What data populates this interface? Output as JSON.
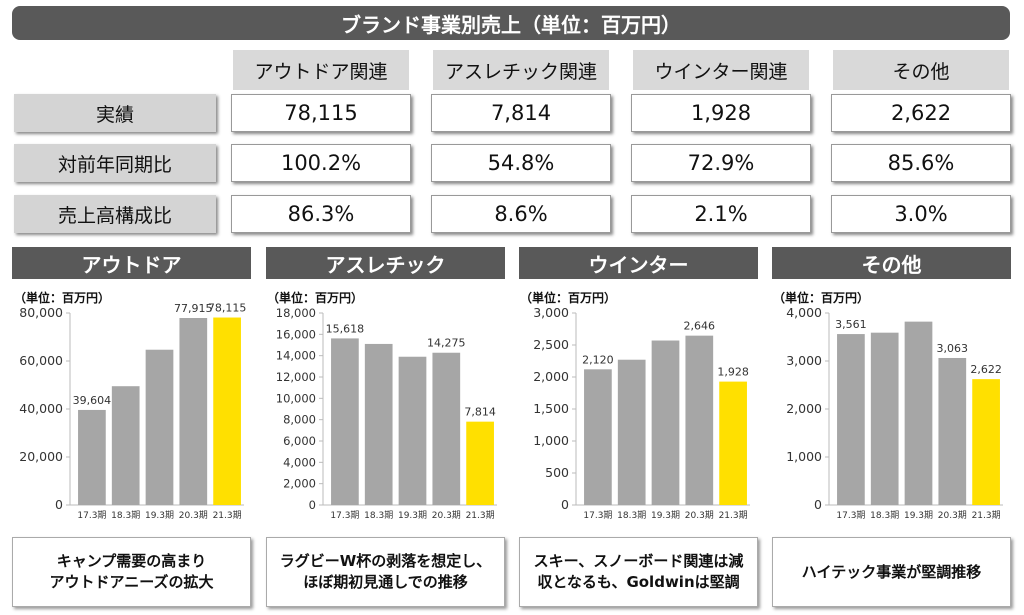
{
  "title": "ブランド事業別売上（単位：百万円）",
  "table": {
    "columns": [
      "アウトドア関連",
      "アスレチック関連",
      "ウインター関連",
      "その他"
    ],
    "rows": [
      {
        "label": "実績",
        "values": [
          "78,115",
          "7,814",
          "1,928",
          "2,622"
        ]
      },
      {
        "label": "対前年同期比",
        "values": [
          "100.2%",
          "54.8%",
          "72.9%",
          "85.6%"
        ]
      },
      {
        "label": "売上高構成比",
        "values": [
          "86.3%",
          "8.6%",
          "2.1%",
          "3.0%"
        ]
      }
    ]
  },
  "colors": {
    "bar": "#a6a6a6",
    "highlight": "#ffe000",
    "header": "#595959"
  },
  "chart_data": [
    {
      "type": "bar",
      "title": "アウトドア",
      "unit": "（単位：百万円）",
      "categories": [
        "17.3期",
        "18.3期",
        "19.3期",
        "20.3期",
        "21.3期"
      ],
      "values": [
        39604,
        49500,
        64700,
        77915,
        78115
      ],
      "labels": [
        "39,604",
        "",
        "",
        "77,915",
        "78,115"
      ],
      "ylim": [
        0,
        80000
      ],
      "ticks": [
        0,
        20000,
        40000,
        60000,
        80000
      ],
      "tick_labels": [
        "0",
        "20,000",
        "40,000",
        "60,000",
        "80,000"
      ],
      "note": [
        "キャンプ需要の高まり",
        "アウトドアニーズの拡大"
      ]
    },
    {
      "type": "bar",
      "title": "アスレチック",
      "unit": "（単位：百万円）",
      "categories": [
        "17.3期",
        "18.3期",
        "19.3期",
        "20.3期",
        "21.3期"
      ],
      "values": [
        15618,
        15100,
        13900,
        14275,
        7814
      ],
      "labels": [
        "15,618",
        "",
        "",
        "14,275",
        "7,814"
      ],
      "ylim": [
        0,
        18000
      ],
      "ticks": [
        0,
        2000,
        4000,
        6000,
        8000,
        10000,
        12000,
        14000,
        16000,
        18000
      ],
      "tick_labels": [
        "0",
        "2,000",
        "4,000",
        "6,000",
        "8,000",
        "10,000",
        "12,000",
        "14,000",
        "16,000",
        "18,000"
      ],
      "note": [
        "ラグビーW杯の剥落を想定し、",
        "ほぼ期初見通しでの推移"
      ]
    },
    {
      "type": "bar",
      "title": "ウインター",
      "unit": "（単位：百万円）",
      "categories": [
        "17.3期",
        "18.3期",
        "19.3期",
        "20.3期",
        "21.3期"
      ],
      "values": [
        2120,
        2270,
        2570,
        2646,
        1928
      ],
      "labels": [
        "2,120",
        "",
        "",
        "2,646",
        "1,928"
      ],
      "ylim": [
        0,
        3000
      ],
      "ticks": [
        0,
        500,
        1000,
        1500,
        2000,
        2500,
        3000
      ],
      "tick_labels": [
        "0",
        "500",
        "1,000",
        "1,500",
        "2,000",
        "2,500",
        "3,000"
      ],
      "note": [
        "スキー、スノーボード関連は減",
        "収となるも、Goldwinは堅調"
      ]
    },
    {
      "type": "bar",
      "title": "その他",
      "unit": "（単位：百万円）",
      "categories": [
        "17.3期",
        "18.3期",
        "19.3期",
        "20.3期",
        "21.3期"
      ],
      "values": [
        3561,
        3590,
        3820,
        3063,
        2622
      ],
      "labels": [
        "3,561",
        "",
        "",
        "3,063",
        "2,622"
      ],
      "ylim": [
        0,
        4000
      ],
      "ticks": [
        0,
        1000,
        2000,
        3000,
        4000
      ],
      "tick_labels": [
        "0",
        "1,000",
        "2,000",
        "3,000",
        "4,000"
      ],
      "note": [
        "ハイテック事業が堅調推移"
      ]
    }
  ]
}
